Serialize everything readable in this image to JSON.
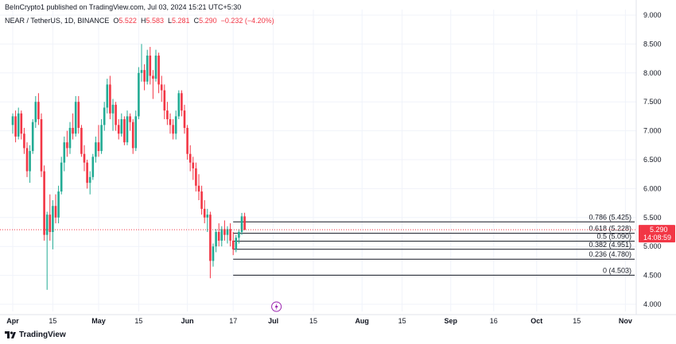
{
  "header": {
    "published": "BeInCrypto1 published on TradingView.com, Jul 03, 2024 15:21 UTC+5:30",
    "symbol": "NEAR / TetherUS, 1D, BINANCE",
    "open_label": "O",
    "open": "5.522",
    "high_label": "H",
    "high": "5.583",
    "low_label": "L",
    "low": "5.281",
    "close_label": "C",
    "close": "5.290",
    "change": "−0.232 (−4.20%)"
  },
  "brand": {
    "name": "TradingView"
  },
  "price_badge": {
    "price": "5.290",
    "countdown": "14:08:59"
  },
  "colors": {
    "up": "#22ab94",
    "down": "#f23645",
    "fib": "#131722",
    "grid": "#f0f3fa"
  },
  "chart_data": {
    "type": "candlestick",
    "y_ticks": [
      "9.000",
      "8.500",
      "8.000",
      "7.500",
      "7.000",
      "6.500",
      "6.000",
      "5.500",
      "5.000",
      "4.500",
      "4.000"
    ],
    "ylim": [
      3.85,
      9.1
    ],
    "x_ticks": [
      {
        "label": "Apr",
        "day": 0,
        "bold": true
      },
      {
        "label": "15",
        "day": 14,
        "bold": false
      },
      {
        "label": "May",
        "day": 30,
        "bold": true
      },
      {
        "label": "15",
        "day": 44,
        "bold": false
      },
      {
        "label": "Jun",
        "day": 61,
        "bold": true
      },
      {
        "label": "17",
        "day": 77,
        "bold": false
      },
      {
        "label": "Jul",
        "day": 91,
        "bold": true
      },
      {
        "label": "15",
        "day": 105,
        "bold": false
      },
      {
        "label": "Aug",
        "day": 122,
        "bold": true
      },
      {
        "label": "15",
        "day": 136,
        "bold": false
      },
      {
        "label": "Sep",
        "day": 153,
        "bold": true
      },
      {
        "label": "16",
        "day": 168,
        "bold": false
      },
      {
        "label": "Oct",
        "day": 183,
        "bold": true
      },
      {
        "label": "15",
        "day": 197,
        "bold": false
      },
      {
        "label": "Nov",
        "day": 214,
        "bold": true
      }
    ],
    "fib_levels": [
      {
        "label": "0.786 (5.425)",
        "value": 5.425
      },
      {
        "label": "0.618 (5.228)",
        "value": 5.228
      },
      {
        "label": "0.5 (5.090)",
        "value": 5.09
      },
      {
        "label": "0.382 (4.951)",
        "value": 4.951
      },
      {
        "label": "0.236 (4.780)",
        "value": 4.78
      },
      {
        "label": "0 (4.503)",
        "value": 4.503
      }
    ],
    "fib_start_day": 77,
    "last_price": 5.29,
    "candles": [
      [
        7.1,
        7.3,
        6.95,
        7.25
      ],
      [
        7.25,
        7.35,
        6.8,
        6.9
      ],
      [
        6.9,
        7.4,
        6.85,
        7.3
      ],
      [
        7.3,
        7.35,
        6.85,
        6.95
      ],
      [
        6.95,
        7.05,
        6.6,
        6.7
      ],
      [
        6.7,
        6.8,
        6.2,
        6.3
      ],
      [
        6.3,
        6.75,
        6.1,
        6.65
      ],
      [
        6.65,
        7.2,
        6.6,
        7.15
      ],
      [
        7.15,
        7.6,
        7.05,
        7.5
      ],
      [
        7.5,
        7.65,
        7.1,
        7.2
      ],
      [
        7.2,
        7.3,
        6.2,
        6.3
      ],
      [
        6.3,
        6.4,
        5.1,
        5.2
      ],
      [
        5.2,
        5.6,
        4.25,
        5.55
      ],
      [
        5.55,
        5.9,
        5.1,
        5.25
      ],
      [
        5.25,
        5.8,
        4.95,
        5.7
      ],
      [
        5.7,
        5.9,
        5.4,
        5.5
      ],
      [
        5.5,
        6.05,
        5.4,
        5.95
      ],
      [
        5.95,
        6.55,
        5.9,
        6.45
      ],
      [
        6.45,
        6.9,
        6.3,
        6.8
      ],
      [
        6.8,
        7.0,
        6.55,
        6.7
      ],
      [
        6.7,
        7.15,
        6.6,
        7.05
      ],
      [
        7.05,
        7.3,
        6.85,
        6.95
      ],
      [
        6.95,
        7.6,
        6.9,
        7.5
      ],
      [
        7.5,
        7.6,
        6.95,
        7.05
      ],
      [
        7.05,
        7.1,
        6.55,
        6.6
      ],
      [
        6.6,
        6.75,
        6.3,
        6.45
      ],
      [
        6.45,
        6.5,
        6.0,
        6.1
      ],
      [
        6.1,
        6.3,
        5.9,
        6.2
      ],
      [
        6.2,
        6.6,
        6.15,
        6.55
      ],
      [
        6.55,
        6.9,
        6.45,
        6.8
      ],
      [
        6.8,
        7.1,
        6.55,
        6.65
      ],
      [
        6.65,
        7.2,
        6.6,
        7.1
      ],
      [
        7.1,
        7.5,
        7.0,
        7.4
      ],
      [
        7.4,
        7.9,
        7.3,
        7.8
      ],
      [
        7.8,
        7.95,
        7.2,
        7.3
      ],
      [
        7.3,
        7.55,
        7.0,
        7.45
      ],
      [
        7.45,
        7.5,
        7.0,
        7.1
      ],
      [
        7.1,
        7.2,
        6.85,
        6.95
      ],
      [
        6.95,
        7.3,
        6.9,
        7.2
      ],
      [
        7.2,
        7.25,
        6.75,
        6.8
      ],
      [
        6.8,
        7.35,
        6.75,
        7.25
      ],
      [
        7.25,
        7.3,
        7.0,
        7.15
      ],
      [
        7.15,
        7.2,
        6.6,
        6.7
      ],
      [
        6.7,
        7.35,
        6.65,
        7.25
      ],
      [
        7.25,
        8.1,
        7.2,
        8.0
      ],
      [
        8.0,
        8.5,
        7.85,
        8.05
      ],
      [
        8.05,
        8.15,
        7.7,
        7.85
      ],
      [
        7.85,
        8.4,
        7.8,
        8.3
      ],
      [
        8.3,
        8.45,
        7.8,
        7.95
      ],
      [
        7.95,
        8.05,
        7.55,
        7.9
      ],
      [
        7.9,
        8.4,
        7.85,
        8.3
      ],
      [
        8.3,
        8.35,
        7.65,
        7.8
      ],
      [
        7.8,
        7.95,
        7.5,
        7.7
      ],
      [
        7.7,
        7.8,
        7.2,
        7.35
      ],
      [
        7.35,
        7.5,
        7.1,
        7.2
      ],
      [
        7.2,
        7.3,
        6.95,
        7.1
      ],
      [
        7.1,
        7.2,
        6.85,
        6.95
      ],
      [
        6.95,
        7.35,
        6.85,
        7.25
      ],
      [
        7.25,
        7.7,
        7.2,
        7.65
      ],
      [
        7.65,
        7.7,
        7.25,
        7.35
      ],
      [
        7.35,
        7.45,
        6.95,
        7.05
      ],
      [
        7.05,
        7.1,
        6.5,
        6.6
      ],
      [
        6.6,
        6.75,
        6.3,
        6.45
      ],
      [
        6.45,
        6.55,
        6.15,
        6.35
      ],
      [
        6.35,
        6.45,
        5.95,
        6.05
      ],
      [
        6.05,
        6.25,
        5.8,
        5.95
      ],
      [
        5.95,
        6.05,
        5.55,
        5.65
      ],
      [
        5.65,
        5.8,
        5.4,
        5.5
      ],
      [
        5.5,
        5.65,
        5.25,
        5.55
      ],
      [
        5.55,
        5.6,
        4.45,
        4.75
      ],
      [
        4.75,
        5.05,
        4.65,
        5.0
      ],
      [
        5.0,
        5.3,
        4.9,
        5.25
      ],
      [
        5.25,
        5.4,
        5.0,
        5.1
      ],
      [
        5.1,
        5.35,
        5.0,
        5.3
      ],
      [
        5.3,
        5.45,
        5.1,
        5.2
      ],
      [
        5.2,
        5.35,
        5.05,
        5.3
      ],
      [
        5.3,
        5.4,
        5.0,
        5.1
      ],
      [
        5.1,
        5.25,
        4.85,
        4.95
      ],
      [
        4.95,
        5.2,
        4.9,
        5.15
      ],
      [
        5.15,
        5.3,
        5.05,
        5.25
      ],
      [
        5.25,
        5.58,
        5.2,
        5.52
      ],
      [
        5.52,
        5.583,
        5.281,
        5.29
      ]
    ]
  }
}
